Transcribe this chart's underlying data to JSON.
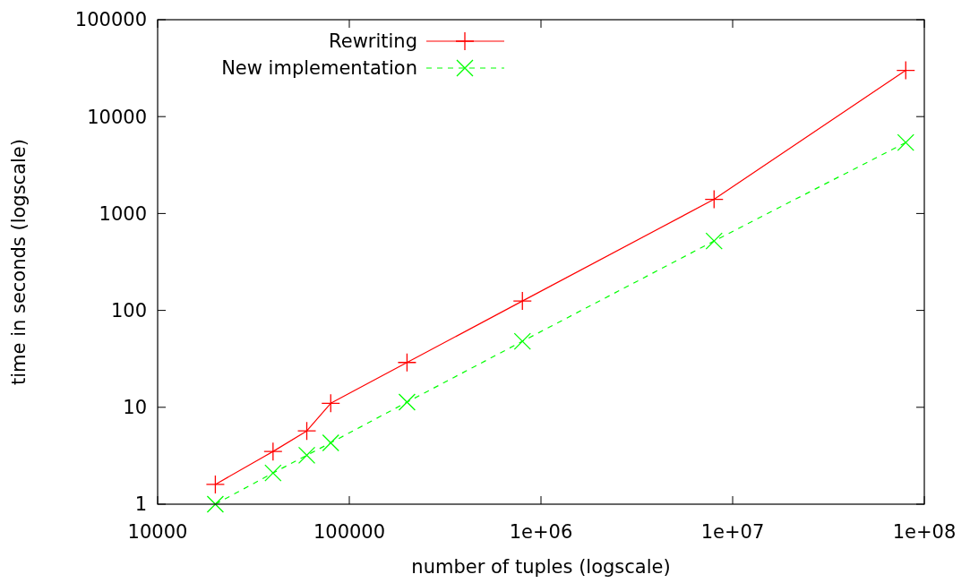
{
  "chart_data": {
    "type": "line",
    "xlabel": "number of tuples (logscale)",
    "ylabel": "time in seconds (logscale)",
    "log": "xy",
    "grid": false,
    "legend": "top left",
    "xlim": [
      10000,
      100000000
    ],
    "xticks": [
      10000,
      100000,
      {
        "value": 1000000,
        "label": "1e+06"
      },
      {
        "value": 10000000,
        "label": "1e+07"
      },
      {
        "value": 100000000,
        "label": "1e+08"
      }
    ],
    "ylim": [
      1,
      100000
    ],
    "yticks": [
      1,
      10,
      100,
      1000,
      10000,
      100000
    ],
    "x": [
      20000,
      40000,
      60000,
      80000,
      200000,
      800000,
      8000000,
      80000000
    ],
    "series": [
      {
        "name": "Rewriting",
        "color": "#ff0000",
        "marker": "plus",
        "line_style": "solid",
        "values": [
          1.6,
          3.5,
          5.7,
          11,
          29,
          125,
          1400,
          30000
        ]
      },
      {
        "name": "New implementation",
        "color": "#00ff00",
        "marker": "cross",
        "line_style": "dashed",
        "values": [
          1.0,
          2.1,
          3.2,
          4.3,
          11.3,
          48,
          520,
          5400
        ]
      }
    ]
  }
}
